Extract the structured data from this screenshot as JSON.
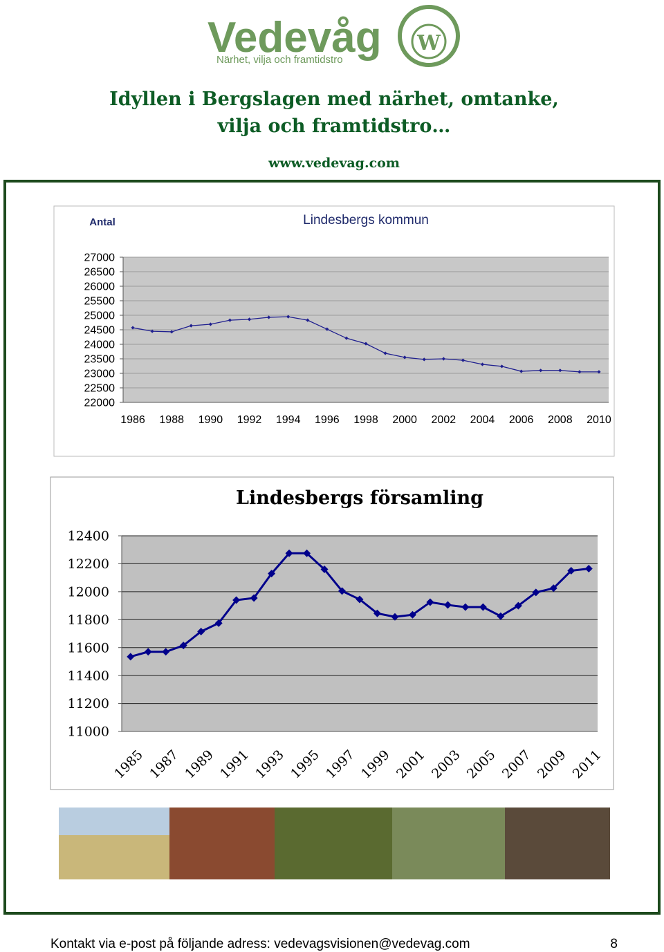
{
  "header": {
    "logo": "Vedevåg",
    "tagline": "Närhet, vilja och framtidstro",
    "heading_lines": [
      "Idyllen i Bergslagen med närhet, omtanke,",
      "vilja och framtidstro…"
    ],
    "url": "www.vedevag.com"
  },
  "chart_data": [
    {
      "type": "line",
      "title": "Lindesbergs kommun",
      "y_label": "Antal",
      "color": "#1f1f8f",
      "categories": [
        "1986",
        null,
        "1988",
        null,
        "1990",
        null,
        "1992",
        null,
        "1994",
        null,
        "1996",
        null,
        "1998",
        null,
        "2000",
        null,
        "2002",
        null,
        "2004",
        null,
        "2006",
        null,
        "2008",
        null,
        "2010"
      ],
      "values": [
        24570,
        24450,
        24430,
        24640,
        24690,
        24830,
        24860,
        24930,
        24950,
        24830,
        24520,
        24210,
        24020,
        23690,
        23550,
        23480,
        23500,
        23450,
        23310,
        23240,
        23070,
        23100,
        23100,
        23050,
        23050
      ],
      "ylim": [
        22000,
        27000
      ],
      "yticks": [
        22000,
        22500,
        23000,
        23500,
        24000,
        24500,
        25000,
        25500,
        26000,
        26500,
        27000
      ],
      "grid": true
    },
    {
      "type": "line",
      "title": "Lindesbergs församling",
      "color": "#00008b",
      "categories": [
        "1985",
        null,
        "1987",
        null,
        "1989",
        null,
        "1991",
        null,
        "1993",
        null,
        "1995",
        null,
        "1997",
        null,
        "1999",
        null,
        "2001",
        null,
        "2003",
        null,
        "2005",
        null,
        "2007",
        null,
        "2009",
        null,
        "2011"
      ],
      "values": [
        11535,
        11570,
        11570,
        11615,
        11715,
        11775,
        11940,
        11955,
        12130,
        12275,
        12275,
        12160,
        12005,
        11945,
        11845,
        11820,
        11835,
        11925,
        11905,
        11890,
        11890,
        11825,
        11900,
        11995,
        12025,
        12150,
        12165
      ],
      "ylim": [
        11000,
        12400
      ],
      "yticks": [
        11000,
        11200,
        11400,
        11600,
        11800,
        12000,
        12200,
        12400
      ],
      "grid": true
    }
  ],
  "footer": {
    "contact": "Kontakt via e-post på följande adress: vedevagsvisionen@vedevag.com",
    "page": "8"
  }
}
